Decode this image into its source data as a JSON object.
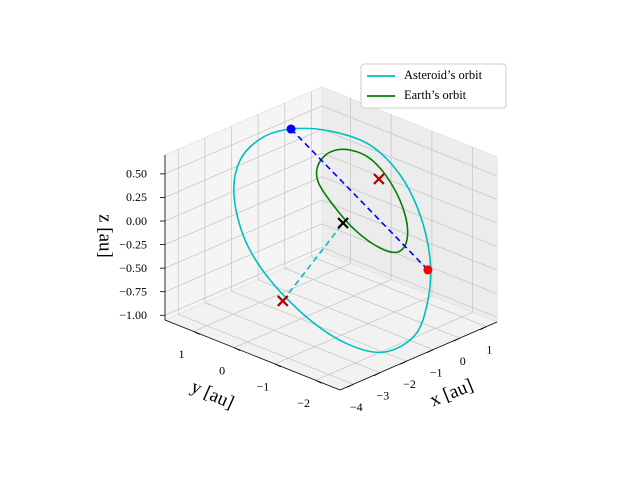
{
  "chart_data": {
    "type": "line3d",
    "xlabel": "x [au]",
    "ylabel": "y [au]",
    "zlabel": "z [au]",
    "xlim": [
      -4.5,
      1.4
    ],
    "ylim": [
      -2.6,
      1.7
    ],
    "zlim": [
      -1.05,
      0.7
    ],
    "xticks": [
      {
        "value": -4,
        "label": "−4"
      },
      {
        "value": -3,
        "label": "−3"
      },
      {
        "value": -2,
        "label": "−2"
      },
      {
        "value": -1,
        "label": "−1"
      },
      0,
      1
    ],
    "yticks": [
      {
        "value": -2,
        "label": "−2"
      },
      {
        "value": -1,
        "label": "−1"
      },
      0,
      1
    ],
    "zticks": [
      {
        "value": -1,
        "label": "−1.00"
      },
      {
        "value": -0.75,
        "label": "−0.75"
      },
      {
        "value": -0.5,
        "label": "−0.50"
      },
      {
        "value": -0.25,
        "label": "−0.25"
      },
      {
        "value": 0,
        "label": "0.00"
      },
      0.25,
      {
        "value": 0.5,
        "label": "0.50"
      }
    ],
    "grid": true,
    "legend": "upper right",
    "series": [
      {
        "name": "Asteroid’s orbit",
        "color": "#00bfbf",
        "closed": true,
        "x": [
          0.252,
          0.847,
          1.232,
          1.155,
          0.729,
          0.048,
          -0.735,
          -1.602,
          -2.41,
          -2.842,
          -3.021,
          -2.919,
          -2.574,
          -1.908,
          -1.155,
          -0.386
        ],
        "y": [
          1.71,
          1.14,
          0.41,
          -0.38,
          -1.15,
          -1.84,
          -2.3,
          -2.55,
          -2.33,
          -1.76,
          -0.9,
          0.15,
          0.99,
          1.7,
          2.04,
          2.01
        ],
        "z": [
          0.393,
          0.397,
          0.328,
          0.156,
          -0.084,
          -0.358,
          -0.607,
          -0.83,
          -0.949,
          -0.921,
          -0.783,
          -0.553,
          -0.316,
          -0.042,
          0.178,
          0.324
        ]
      },
      {
        "name": "Earth’s orbit",
        "color": "#008000",
        "closed": true,
        "x": [
          0.015,
          0.453,
          0.814,
          0.983,
          0.838,
          0.486,
          0.05,
          -0.321,
          -0.537,
          -0.605,
          -0.492,
          -0.304
        ],
        "y": [
          0.89,
          0.88,
          0.63,
          0.2,
          -0.39,
          -0.94,
          -1.27,
          -1.29,
          -0.99,
          -0.42,
          0.19,
          0.68
        ],
        "z": [
          0.181,
          0.267,
          0.288,
          0.236,
          0.09,
          -0.09,
          -0.244,
          -0.323,
          -0.306,
          -0.205,
          -0.06,
          0.076
        ]
      },
      {
        "color": "#0000ff",
        "linestyle": "dashed",
        "x": [
          0.252,
          -0.172
        ],
        "y": [
          1.71,
          -1.93
        ],
        "z": [
          0.393,
          -0.421
        ]
      },
      {
        "color": "#00bfbf",
        "linestyle": "dashed",
        "x": [
          -3.102,
          -0.668
        ],
        "y": [
          -0.28,
          -0.17
        ],
        "z": [
          -0.677,
          -0.167
        ]
      }
    ],
    "markers": [
      {
        "marker": "o",
        "color": "#0000ff",
        "x": 0.252,
        "y": 1.71,
        "z": 0.393
      },
      {
        "marker": "o",
        "color": "#ff0000",
        "x": -0.172,
        "y": -1.93,
        "z": -0.421
      },
      {
        "marker": "x",
        "color": "#000000",
        "x": -0.668,
        "y": -0.17,
        "z": -0.167
      },
      {
        "marker": "x",
        "color": "#b00000",
        "x": 0.74,
        "y": -0.13,
        "z": 0.121
      },
      {
        "marker": "x",
        "color": "#b00000",
        "x": -3.102,
        "y": -0.28,
        "z": -0.677
      }
    ]
  }
}
